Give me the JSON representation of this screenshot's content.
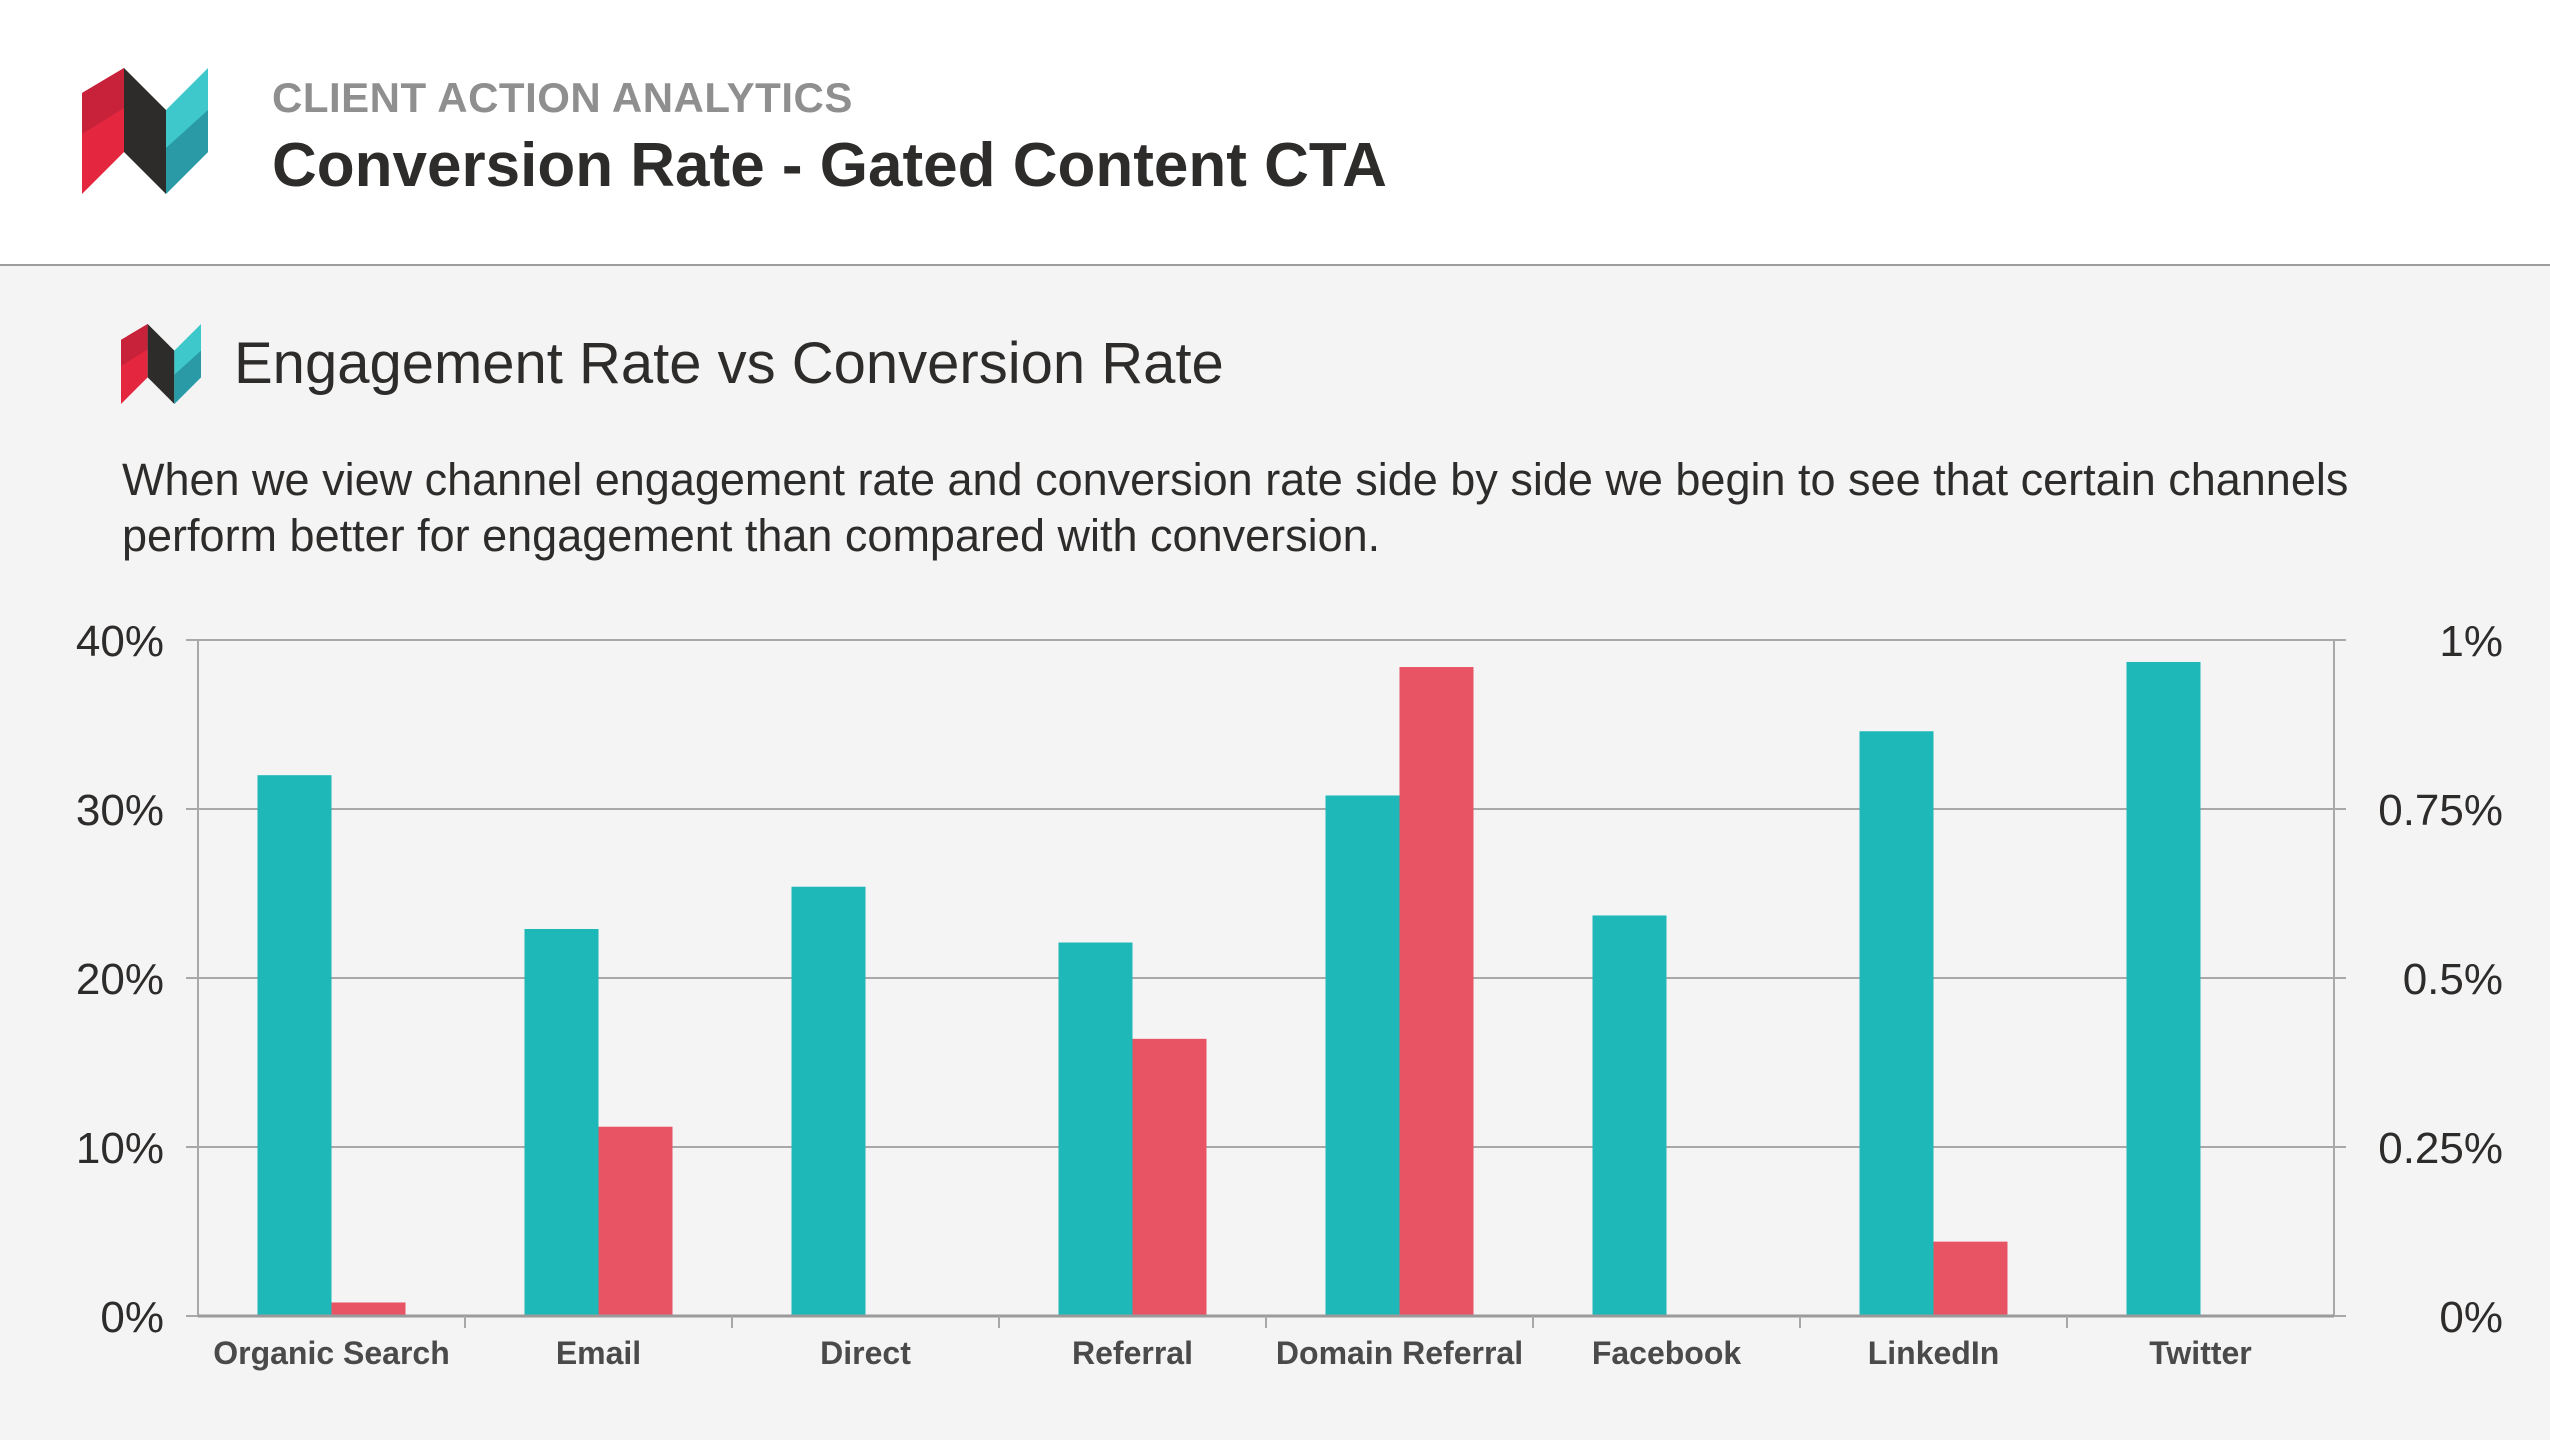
{
  "header": {
    "kicker": "CLIENT ACTION ANALYTICS",
    "title": "Conversion Rate - Gated Content CTA"
  },
  "section": {
    "title": "Engagement Rate vs Conversion Rate",
    "description": "When we view channel engagement rate and conversion rate side by side we begin to see that certain channels perform better for engagement than compared with conversion."
  },
  "colors": {
    "engagement": "#1fb8b8",
    "conversion": "#e95464",
    "logo_red": "#e4273f",
    "logo_dark": "#2e2c2b",
    "logo_teal": "#3ec8cc"
  },
  "chart_data": {
    "type": "bar",
    "categories": [
      "Organic Search",
      "Email",
      "Direct",
      "Referral",
      "Domain Referral",
      "Facebook",
      "LinkedIn",
      "Twitter"
    ],
    "series": [
      {
        "values": [
          32,
          22.9,
          25.4,
          22.1,
          30.8,
          23.7,
          34.6,
          38.7
        ],
        "axis": "left",
        "color": "#1fb8b8"
      },
      {
        "values": [
          0.02,
          0.28,
          0,
          0.41,
          0.96,
          0,
          0.11,
          0
        ],
        "axis": "right",
        "color": "#e95464"
      }
    ],
    "left_axis": {
      "ylim": [
        0,
        40
      ],
      "ticks": [
        "0%",
        "10%",
        "20%",
        "30%",
        "40%"
      ]
    },
    "right_axis": {
      "ylim": [
        0,
        1
      ],
      "ticks": [
        "0%",
        "0.25%",
        "0.5%",
        "0.75%",
        "1%"
      ]
    },
    "grid": true,
    "legend": "none"
  }
}
